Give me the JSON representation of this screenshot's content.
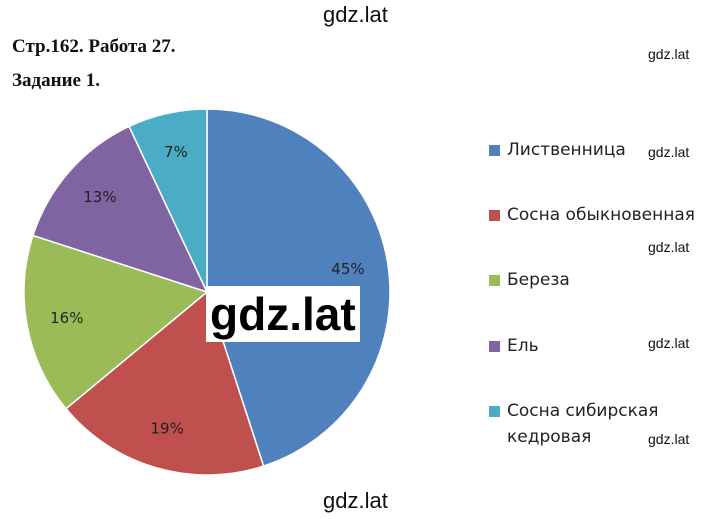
{
  "header": {
    "page": "Стр.162. Работа 27.",
    "task": "Задание 1."
  },
  "watermarks": [
    "gdz.lat",
    "gdz.lat",
    "gdz.lat",
    "gdz.lat",
    "gdz.lat",
    "gdz.lat",
    "gdz.lat",
    "gdz.lat",
    "gdz.lat"
  ],
  "chart_data": {
    "type": "pie",
    "categories": [
      "Лиственница",
      "Сосна обыкновенная",
      "Береза",
      "Ель",
      "Сосна сибирская кедровая"
    ],
    "values": [
      45,
      19,
      16,
      13,
      7
    ],
    "value_labels": [
      "45%",
      "19%",
      "16%",
      "13%",
      "7%"
    ],
    "colors": [
      "#4f81bd",
      "#c0504d",
      "#9bbb59",
      "#8064a2",
      "#4bacc6"
    ],
    "legend": "right"
  }
}
